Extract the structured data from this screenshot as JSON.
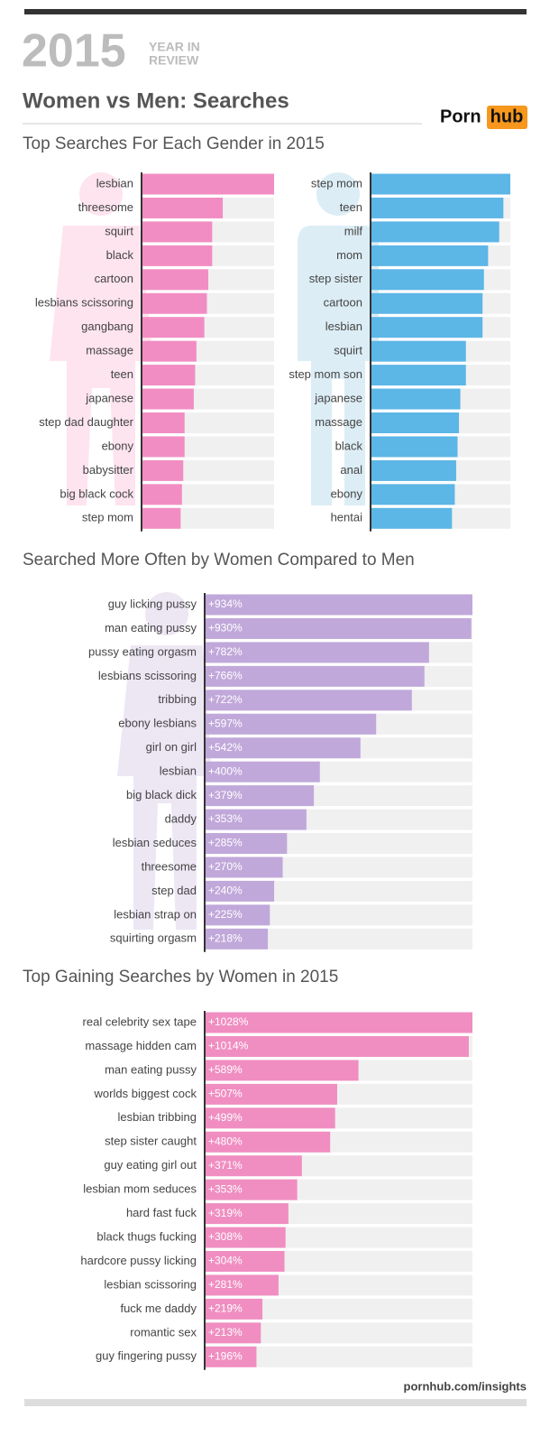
{
  "header": {
    "year": "2015",
    "badge": [
      "YEAR IN",
      "REVIEW"
    ],
    "title": "Women vs Men: Searches",
    "logo": [
      "Porn",
      "hub"
    ]
  },
  "chart_data": [
    {
      "type": "bar",
      "orientation": "horizontal",
      "title": "Top Searches For Each Gender in 2015",
      "color": "#f28dc3",
      "xlim": [
        0,
        100
      ],
      "categories": [
        "lesbian",
        "threesome",
        "squirt",
        "black",
        "cartoon",
        "lesbians scissoring",
        "gangbang",
        "massage",
        "teen",
        "japanese",
        "step dad daughter",
        "ebony",
        "babysitter",
        "big black cock",
        "step mom"
      ],
      "values": [
        100,
        61,
        53,
        53,
        50,
        49,
        47,
        41,
        40,
        39,
        32,
        32,
        31,
        30,
        29
      ]
    },
    {
      "type": "bar",
      "orientation": "horizontal",
      "color": "#5cb6e6",
      "xlim": [
        0,
        100
      ],
      "categories": [
        "step mom",
        "teen",
        "milf",
        "mom",
        "step sister",
        "cartoon",
        "lesbian",
        "squirt",
        "step mom son",
        "japanese",
        "massage",
        "black",
        "anal",
        "ebony",
        "hentai"
      ],
      "values": [
        100,
        95,
        92,
        84,
        81,
        80,
        80,
        68,
        68,
        64,
        63,
        62,
        61,
        60,
        58
      ]
    },
    {
      "type": "bar",
      "orientation": "horizontal",
      "title": "Searched More Often by Women Compared to Men",
      "color": "#c1a8da",
      "xlim": [
        0,
        934
      ],
      "categories": [
        "guy licking pussy",
        "man eating pussy",
        "pussy eating orgasm",
        "lesbians scissoring",
        "tribbing",
        "ebony lesbians",
        "girl on girl",
        "lesbian",
        "big black dick",
        "daddy",
        "lesbian seduces",
        "threesome",
        "step dad",
        "lesbian strap on",
        "squirting orgasm"
      ],
      "values": [
        934,
        930,
        782,
        766,
        722,
        597,
        542,
        400,
        379,
        353,
        285,
        270,
        240,
        225,
        218
      ],
      "value_labels": [
        "+934%",
        "+930%",
        "+782%",
        "+766%",
        "+722%",
        "+597%",
        "+542%",
        "+400%",
        "+379%",
        "+353%",
        "+285%",
        "+270%",
        "+240%",
        "+225%",
        "+218%"
      ]
    },
    {
      "type": "bar",
      "orientation": "horizontal",
      "title": "Top Gaining Searches by Women in 2015",
      "color": "#f08ec1",
      "xlim": [
        0,
        1028
      ],
      "categories": [
        "real celebrity sex tape",
        "massage hidden cam",
        "man eating pussy",
        "worlds biggest cock",
        "lesbian tribbing",
        "step sister caught",
        "guy eating girl out",
        "lesbian mom seduces",
        "hard fast fuck",
        "black thugs fucking",
        "hardcore pussy licking",
        "lesbian scissoring",
        "fuck me daddy",
        "romantic sex",
        "guy fingering pussy"
      ],
      "values": [
        1028,
        1014,
        589,
        507,
        499,
        480,
        371,
        353,
        319,
        308,
        304,
        281,
        219,
        213,
        196
      ],
      "value_labels": [
        "+1028%",
        "+1014%",
        "+589%",
        "+507%",
        "+499%",
        "+480%",
        "+371%",
        "+353%",
        "+319%",
        "+308%",
        "+304%",
        "+281%",
        "+219%",
        "+213%",
        "+196%"
      ]
    }
  ],
  "footer": "pornhub.com/insights"
}
